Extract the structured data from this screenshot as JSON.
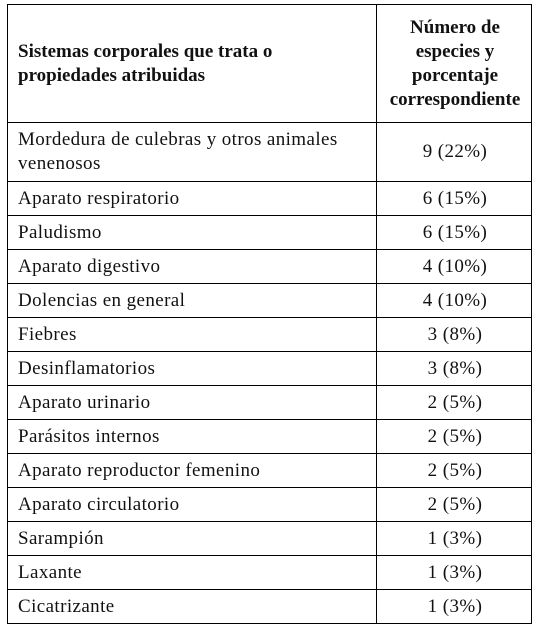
{
  "table": {
    "header": [
      "Sistemas corporales que trata o propiedades atribuidas",
      "Número de especies y porcentaje correspondiente"
    ],
    "rows": [
      [
        "Mordedura de culebras y otros animales venenosos",
        "9 (22%)"
      ],
      [
        "Aparato respiratorio",
        "6 (15%)"
      ],
      [
        "Paludismo",
        "6 (15%)"
      ],
      [
        "Aparato digestivo",
        "4 (10%)"
      ],
      [
        "Dolencias en general",
        "4 (10%)"
      ],
      [
        "Fiebres",
        "3 (8%)"
      ],
      [
        "Desinflamatorios",
        "3 (8%)"
      ],
      [
        "Aparato urinario",
        "2 (5%)"
      ],
      [
        "Parásitos internos",
        "2 (5%)"
      ],
      [
        "Aparato reproductor femenino",
        "2 (5%)"
      ],
      [
        "Aparato circulatorio",
        "2 (5%)"
      ],
      [
        "Sarampión",
        "1 (3%)"
      ],
      [
        "Laxante",
        "1 (3%)"
      ],
      [
        "Cicatrizante",
        "1 (3%)"
      ]
    ]
  }
}
